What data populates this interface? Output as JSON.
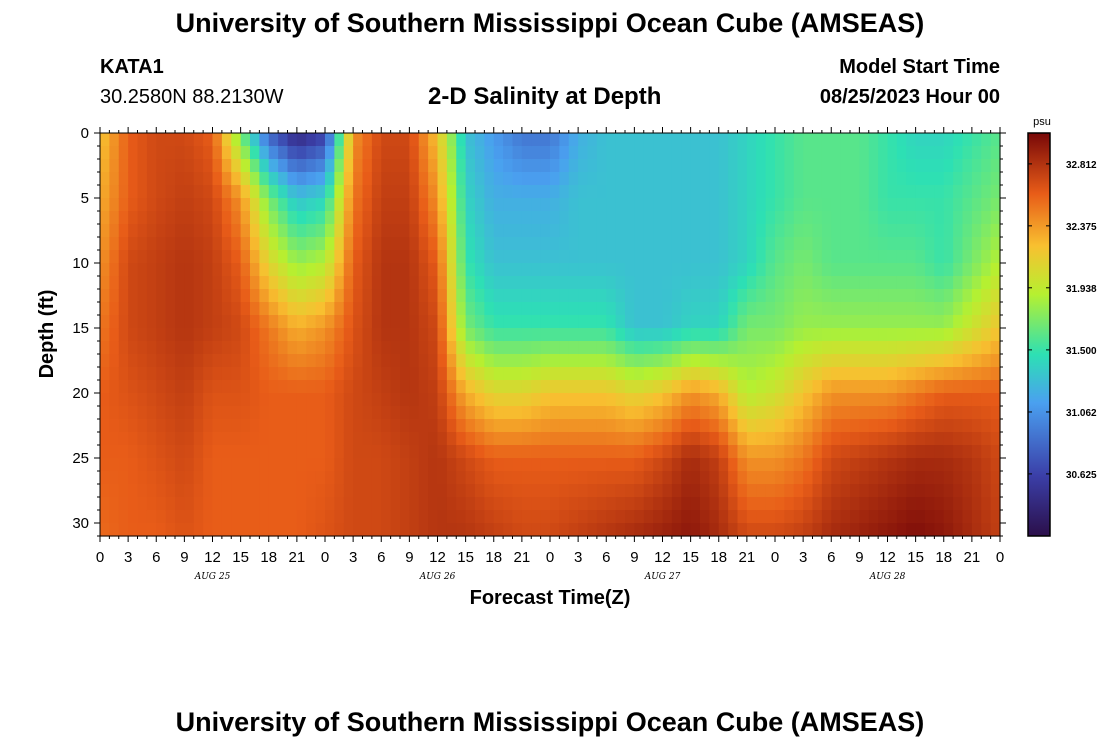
{
  "header": {
    "title": "University of Southern Mississippi Ocean Cube (AMSEAS)",
    "station": "KATA1",
    "coords": "30.2580N  88.2130W",
    "subtitle": "2-D Salinity at Depth",
    "model_start_label": "Model Start Time",
    "model_start_value": "08/25/2023 Hour 00"
  },
  "footer": {
    "title": "University of Southern Mississippi Ocean Cube (AMSEAS)"
  },
  "chart_data": {
    "type": "heatmap",
    "title": "2-D Salinity at Depth",
    "xlabel": "Forecast Time(Z)",
    "ylabel": "Depth (ft)",
    "x_range_hours": [
      0,
      96
    ],
    "ylim": [
      0,
      31
    ],
    "y_inverted": true,
    "x_tick_labels": [
      "0",
      "3",
      "6",
      "9",
      "12",
      "15",
      "18",
      "21",
      "0",
      "3",
      "6",
      "9",
      "12",
      "15",
      "18",
      "21",
      "0",
      "3",
      "6",
      "9",
      "12",
      "15",
      "18",
      "21",
      "0",
      "3",
      "6",
      "9",
      "12",
      "15",
      "18",
      "21",
      "0"
    ],
    "x_tick_hours": [
      0,
      3,
      6,
      9,
      12,
      15,
      18,
      21,
      24,
      27,
      30,
      33,
      36,
      39,
      42,
      45,
      48,
      51,
      54,
      57,
      60,
      63,
      66,
      69,
      72,
      75,
      78,
      81,
      84,
      87,
      90,
      93,
      96
    ],
    "date_labels": [
      {
        "label": "AUG 25",
        "hour": 12
      },
      {
        "label": "AUG 26",
        "hour": 36
      },
      {
        "label": "AUG 27",
        "hour": 60
      },
      {
        "label": "AUG 28",
        "hour": 84
      }
    ],
    "y_ticks": [
      0,
      5,
      10,
      15,
      20,
      25,
      30
    ],
    "colorbar": {
      "units": "psu",
      "range": [
        30.187,
        33.03
      ],
      "ticks": [
        32.812,
        32.375,
        31.938,
        31.5,
        31.062,
        30.625
      ],
      "tick_labels": [
        "32.812",
        "32.375",
        "31.938",
        "31.500",
        "31.062",
        "30.625"
      ]
    },
    "salinity_profiles": {
      "depths_ft": [
        0,
        5,
        10,
        15,
        20,
        25,
        31
      ],
      "times_hours": [
        0,
        3,
        6,
        9,
        12,
        15,
        18,
        21,
        24,
        27,
        30,
        33,
        36,
        39,
        42,
        45,
        48,
        51,
        54,
        57,
        60,
        63,
        66,
        69,
        72,
        75,
        78,
        81,
        84,
        87,
        90,
        93,
        96
      ],
      "values_psu": [
        [
          32.2,
          32.3,
          32.4,
          32.5,
          32.6,
          32.6,
          32.55
        ],
        [
          32.6,
          32.6,
          32.7,
          32.7,
          32.65,
          32.6,
          32.6
        ],
        [
          32.7,
          32.7,
          32.75,
          32.75,
          32.7,
          32.65,
          32.6
        ],
        [
          32.7,
          32.75,
          32.8,
          32.8,
          32.75,
          32.7,
          32.65
        ],
        [
          32.6,
          32.7,
          32.75,
          32.75,
          32.65,
          32.6,
          32.6
        ],
        [
          31.7,
          32.4,
          32.6,
          32.7,
          32.65,
          32.6,
          32.6
        ],
        [
          30.8,
          31.7,
          32.1,
          32.5,
          32.6,
          32.6,
          32.6
        ],
        [
          30.4,
          31.3,
          31.8,
          32.3,
          32.6,
          32.6,
          32.6
        ],
        [
          30.6,
          31.4,
          31.9,
          32.4,
          32.6,
          32.6,
          32.65
        ],
        [
          32.4,
          32.5,
          32.6,
          32.65,
          32.7,
          32.7,
          32.7
        ],
        [
          32.7,
          32.75,
          32.8,
          32.8,
          32.75,
          32.7,
          32.7
        ],
        [
          32.7,
          32.75,
          32.8,
          32.8,
          32.8,
          32.75,
          32.75
        ],
        [
          32.2,
          32.4,
          32.6,
          32.7,
          32.75,
          32.8,
          32.8
        ],
        [
          31.3,
          31.4,
          31.5,
          31.7,
          32.3,
          32.7,
          32.8
        ],
        [
          31.1,
          31.2,
          31.3,
          31.5,
          32.1,
          32.6,
          32.75
        ],
        [
          30.9,
          31.2,
          31.3,
          31.5,
          32.1,
          32.6,
          32.7
        ],
        [
          30.9,
          31.2,
          31.3,
          31.5,
          32.2,
          32.6,
          32.7
        ],
        [
          31.2,
          31.3,
          31.3,
          31.5,
          32.2,
          32.6,
          32.75
        ],
        [
          31.3,
          31.3,
          31.3,
          31.5,
          32.2,
          32.6,
          32.8
        ],
        [
          31.3,
          31.3,
          31.3,
          31.3,
          32.1,
          32.6,
          32.85
        ],
        [
          31.3,
          31.3,
          31.3,
          31.3,
          32.2,
          32.7,
          32.9
        ],
        [
          31.3,
          31.3,
          31.3,
          31.4,
          32.4,
          32.85,
          32.95
        ],
        [
          31.3,
          31.3,
          31.3,
          31.4,
          32.3,
          32.75,
          32.85
        ],
        [
          31.4,
          31.4,
          31.4,
          31.7,
          31.9,
          32.4,
          32.7
        ],
        [
          31.5,
          31.5,
          31.6,
          31.7,
          32.0,
          32.4,
          32.7
        ],
        [
          31.6,
          31.6,
          31.7,
          31.8,
          32.2,
          32.5,
          32.75
        ],
        [
          31.6,
          31.6,
          31.6,
          31.8,
          32.4,
          32.7,
          32.85
        ],
        [
          31.6,
          31.6,
          31.6,
          31.8,
          32.4,
          32.75,
          32.9
        ],
        [
          31.5,
          31.5,
          31.6,
          31.8,
          32.4,
          32.8,
          32.95
        ],
        [
          31.4,
          31.5,
          31.6,
          31.8,
          32.5,
          32.85,
          33.0
        ],
        [
          31.4,
          31.5,
          31.5,
          31.8,
          32.6,
          32.85,
          32.95
        ],
        [
          31.5,
          31.6,
          31.7,
          32.0,
          32.6,
          32.8,
          32.85
        ],
        [
          31.6,
          31.7,
          31.9,
          32.2,
          32.6,
          32.7,
          32.75
        ]
      ]
    }
  }
}
